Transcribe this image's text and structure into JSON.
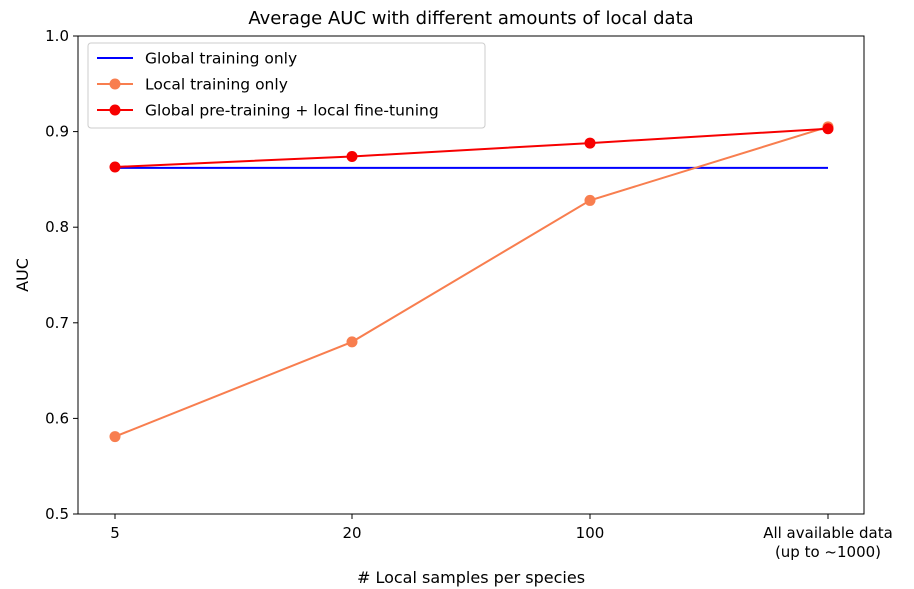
{
  "chart_data": {
    "type": "line",
    "title": "Average AUC with different amounts of local data",
    "xlabel": "# Local samples per species",
    "ylabel": "AUC",
    "categories": [
      [
        "5"
      ],
      [
        "20"
      ],
      [
        "100"
      ],
      [
        "All available data",
        "(up to ~1000)"
      ]
    ],
    "ylim": [
      0.5,
      1.0
    ],
    "yticks": [
      "0.5",
      "0.6",
      "0.7",
      "0.8",
      "0.9",
      "1.0"
    ],
    "grid": false,
    "legend_position": "top-left",
    "series": [
      {
        "name": "Global training only",
        "values": [
          0.862,
          0.862,
          0.862,
          0.862
        ],
        "color": "#0000ff",
        "markers": false
      },
      {
        "name": "Local training only",
        "values": [
          0.581,
          0.68,
          0.828,
          0.905
        ],
        "color": "#f87e4f",
        "markers": true
      },
      {
        "name": "Global pre-training + local fine-tuning",
        "values": [
          0.863,
          0.874,
          0.888,
          0.903
        ],
        "color": "#f70000",
        "markers": true
      }
    ]
  }
}
